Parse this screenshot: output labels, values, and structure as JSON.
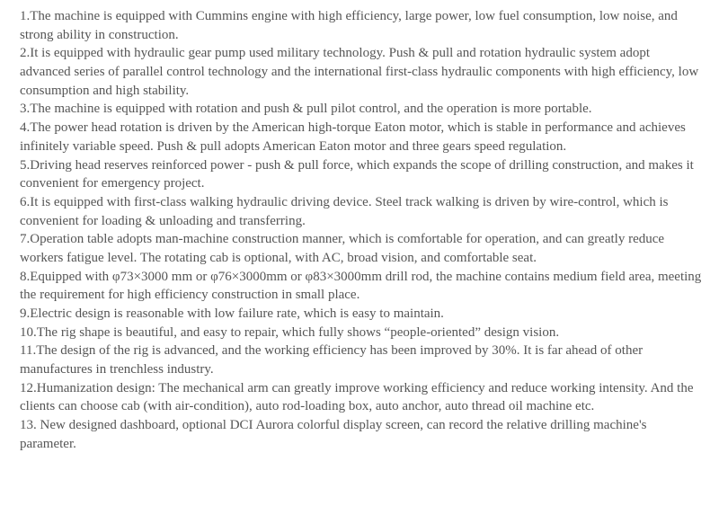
{
  "features": [
    "1.The machine is equipped with Cummins engine with high efficiency, large power, low fuel consumption, low noise, and strong ability in construction.",
    "2.It is equipped with hydraulic gear pump used military technology. Push & pull and rotation hydraulic system adopt advanced series of parallel control technology and the international first-class hydraulic components with high efficiency, low consumption and high stability.",
    "3.The machine is equipped with rotation and push & pull pilot control, and the operation is more portable.",
    "4.The power head rotation is driven by the American high-torque Eaton motor, which is stable in performance and achieves infinitely variable speed. Push & pull adopts American Eaton motor and three gears speed regulation.",
    "5.Driving head reserves reinforced power - push & pull force, which expands the scope of drilling construction, and makes it convenient for emergency project.",
    "6.It is equipped with first-class walking hydraulic driving device. Steel track walking is driven by wire-control, which is convenient for loading & unloading and transferring.",
    "7.Operation table adopts man-machine construction manner, which is comfortable for operation, and can greatly reduce workers fatigue level. The rotating cab is optional, with AC, broad vision, and comfortable seat.",
    "8.Equipped with φ73×3000 mm or φ76×3000mm or φ83×3000mm drill rod, the machine contains medium field area, meeting the requirement for high efficiency construction in small place.",
    "9.Electric design is reasonable with low failure rate, which is easy to maintain.",
    "10.The rig shape is beautiful, and easy to repair, which fully shows “people-oriented” design vision.",
    "11.The design of the rig is advanced, and the working efficiency has been improved by 30%. It is far ahead of other manufactures in trenchless industry.",
    "12.Humanization design: The mechanical arm can greatly improve working efficiency and reduce working intensity. And the clients can choose cab (with air-condition), auto rod-loading box, auto anchor, auto thread oil machine etc.",
    "13. New designed dashboard, optional DCI Aurora colorful display screen, can record the relative drilling machine's parameter."
  ]
}
